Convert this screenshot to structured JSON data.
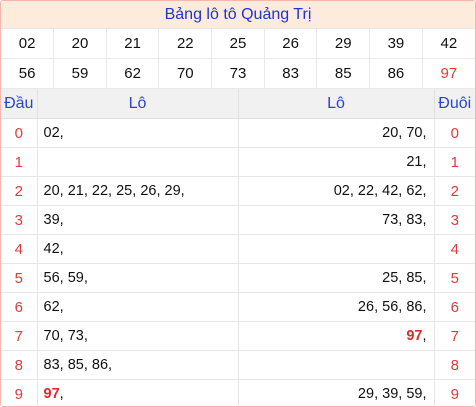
{
  "title": "Bảng lô tô Quảng Trị",
  "numbers": {
    "row1": [
      "02",
      "20",
      "21",
      "22",
      "25",
      "26",
      "29",
      "39",
      "42"
    ],
    "row2": [
      "56",
      "59",
      "62",
      "70",
      "73",
      "83",
      "85",
      "86",
      "97"
    ]
  },
  "header": {
    "dau": "Đầu",
    "lo_left": "Lô",
    "lo_right": "Lô",
    "duoi": "Đuôi"
  },
  "rows": [
    {
      "dau": "0",
      "left": [
        {
          "t": "02"
        }
      ],
      "right": [
        {
          "t": "20"
        },
        {
          "t": "70"
        }
      ],
      "duoi": "0"
    },
    {
      "dau": "1",
      "left": [],
      "right": [
        {
          "t": "21"
        }
      ],
      "duoi": "1"
    },
    {
      "dau": "2",
      "left": [
        {
          "t": "20"
        },
        {
          "t": "21"
        },
        {
          "t": "22"
        },
        {
          "t": "25"
        },
        {
          "t": "26"
        },
        {
          "t": "29"
        }
      ],
      "right": [
        {
          "t": "02"
        },
        {
          "t": "22"
        },
        {
          "t": "42"
        },
        {
          "t": "62"
        }
      ],
      "duoi": "2"
    },
    {
      "dau": "3",
      "left": [
        {
          "t": "39"
        }
      ],
      "right": [
        {
          "t": "73"
        },
        {
          "t": "83"
        }
      ],
      "duoi": "3"
    },
    {
      "dau": "4",
      "left": [
        {
          "t": "42"
        }
      ],
      "right": [],
      "duoi": "4"
    },
    {
      "dau": "5",
      "left": [
        {
          "t": "56"
        },
        {
          "t": "59"
        }
      ],
      "right": [
        {
          "t": "25"
        },
        {
          "t": "85"
        }
      ],
      "duoi": "5"
    },
    {
      "dau": "6",
      "left": [
        {
          "t": "62"
        }
      ],
      "right": [
        {
          "t": "26"
        },
        {
          "t": "56"
        },
        {
          "t": "86"
        }
      ],
      "duoi": "6"
    },
    {
      "dau": "7",
      "left": [
        {
          "t": "70"
        },
        {
          "t": "73"
        }
      ],
      "right": [
        {
          "t": "97",
          "hl": true
        }
      ],
      "duoi": "7"
    },
    {
      "dau": "8",
      "left": [
        {
          "t": "83"
        },
        {
          "t": "85"
        },
        {
          "t": "86"
        }
      ],
      "right": [],
      "duoi": "8"
    },
    {
      "dau": "9",
      "left": [
        {
          "t": "97",
          "hl": true
        }
      ],
      "right": [
        {
          "t": "29"
        },
        {
          "t": "39"
        },
        {
          "t": "59"
        }
      ],
      "duoi": "9"
    }
  ],
  "colors": {
    "title_bg": "#fdebdc",
    "title_text": "#1f33d6",
    "red": "#e63a3a",
    "header_text": "#2a43d8"
  }
}
